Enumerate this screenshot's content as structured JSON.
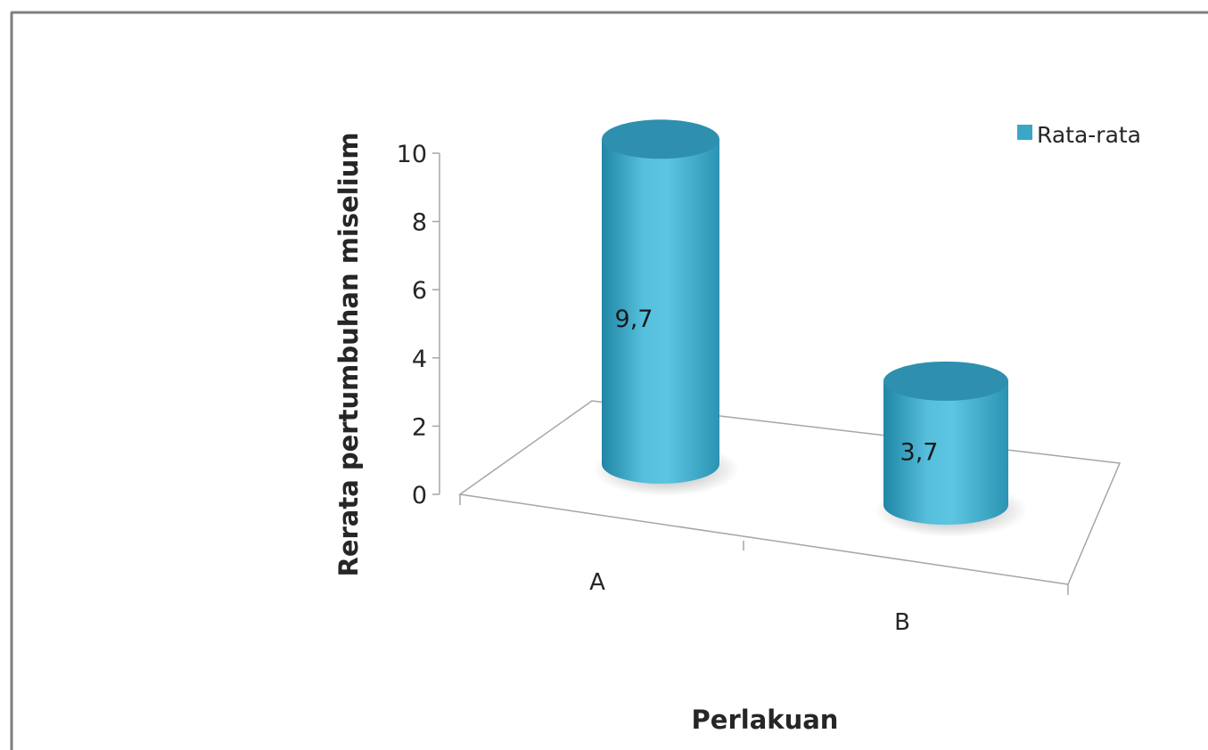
{
  "chart_data": {
    "type": "bar",
    "style": "3d-cylinder",
    "categories": [
      "A",
      "B"
    ],
    "series": [
      {
        "name": "Rata-rata",
        "values": [
          9.7,
          3.7
        ],
        "labels": [
          "9,7",
          "3,7"
        ]
      }
    ],
    "xlabel": "Perlakuan",
    "ylabel": "Rerata pertumbuhan miselium",
    "ylim": [
      0,
      10
    ],
    "yticks": [
      "0",
      "2",
      "4",
      "6",
      "8",
      "10"
    ],
    "legend": "top-right",
    "grid": false,
    "colors": {
      "bar": "#3aa6c8",
      "bar_dark": "#1f7f9e",
      "bar_light": "#5fc3e0",
      "top": "#2e8fae",
      "axis": "#a6a6a6",
      "frame": "#7f7f7f"
    }
  }
}
